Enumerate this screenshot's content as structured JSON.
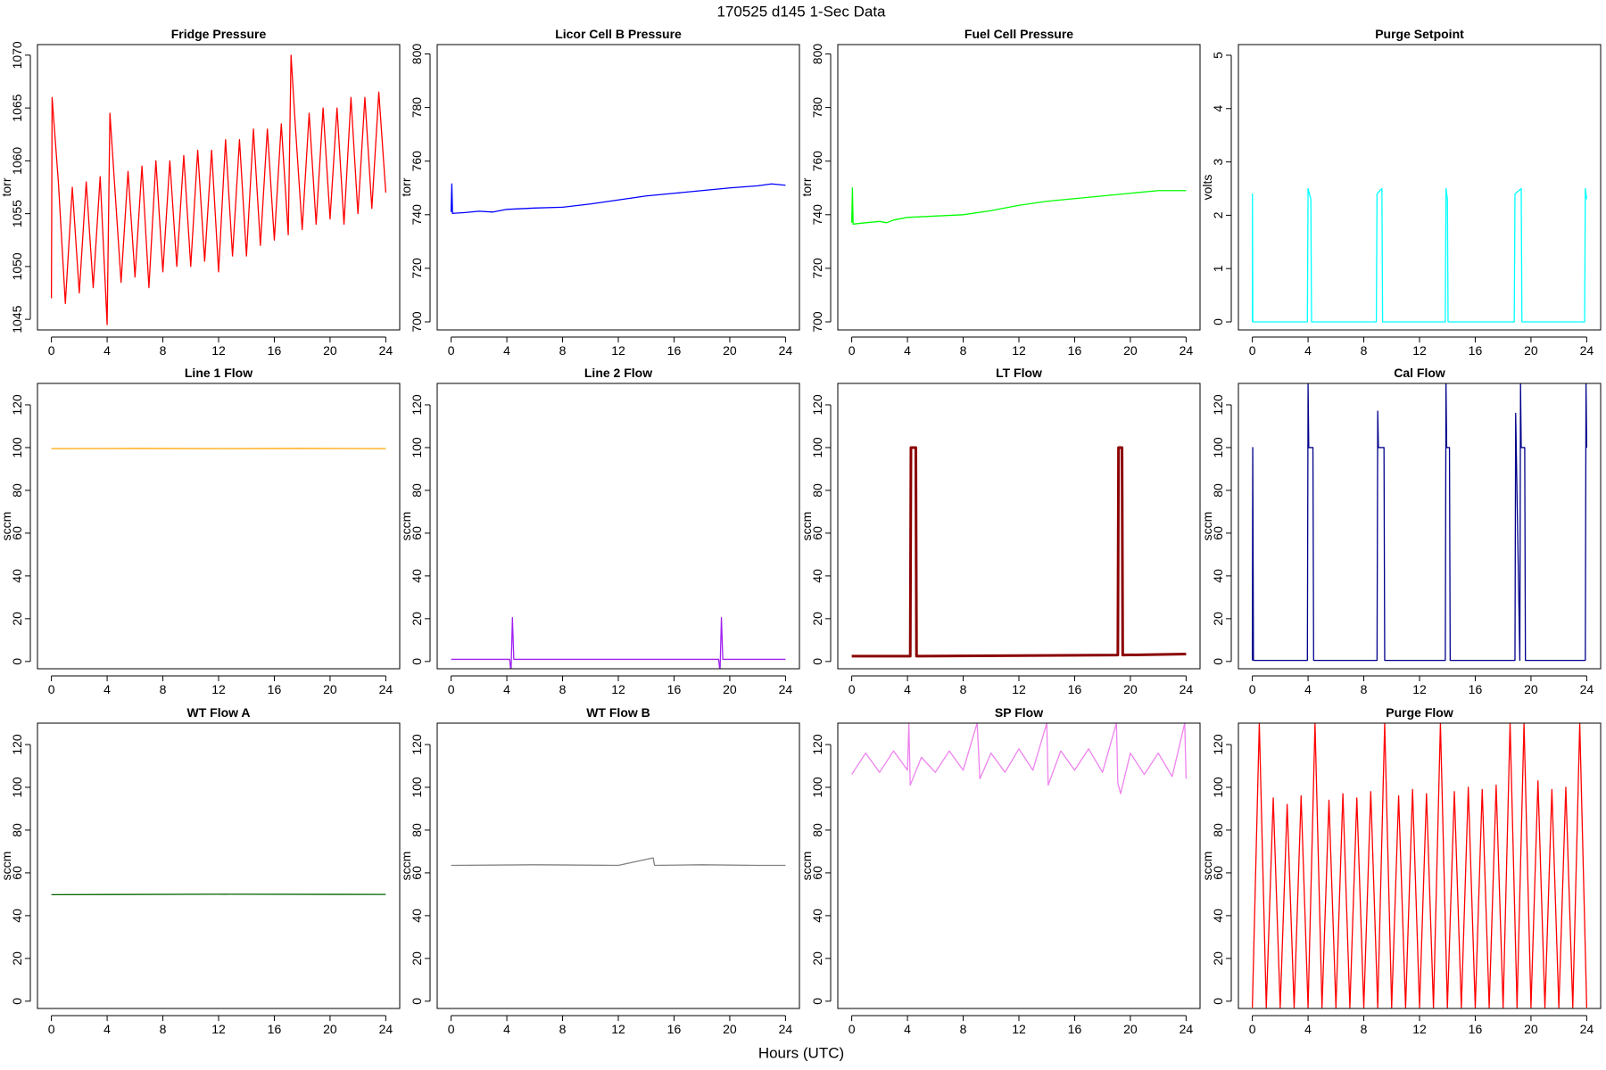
{
  "title": "170525   d145   1-Sec Data",
  "xlabel": "Hours (UTC)",
  "chart_data": [
    {
      "type": "line",
      "title": "Fridge Pressure",
      "ylabel": "torr",
      "x": [
        0,
        0.05,
        0.5,
        1,
        1.5,
        2,
        2.5,
        3,
        3.5,
        4,
        4.2,
        4.5,
        5,
        5.5,
        6,
        6.5,
        7,
        7.5,
        8,
        8.5,
        9,
        9.5,
        10,
        10.5,
        11,
        11.5,
        12,
        12.5,
        13,
        13.5,
        14,
        14.5,
        15,
        15.5,
        16,
        16.5,
        17,
        17.2,
        17.5,
        18,
        18.5,
        19,
        19.5,
        20,
        20.5,
        21,
        21.5,
        22,
        22.5,
        23,
        23.5,
        24
      ],
      "series": [
        {
          "color": "#ff0000",
          "values": [
            1047,
            1066,
            1058,
            1046.5,
            1057.5,
            1047.5,
            1058,
            1048,
            1058.5,
            1044.5,
            1064.5,
            1058.5,
            1048.5,
            1059,
            1049,
            1059.5,
            1048,
            1060,
            1049.5,
            1060,
            1050,
            1060.5,
            1050,
            1061,
            1050.5,
            1061,
            1049.5,
            1062,
            1051,
            1062,
            1051,
            1063,
            1052,
            1063,
            1052.5,
            1063.5,
            1053,
            1070,
            1063.5,
            1053.5,
            1064.5,
            1054,
            1065,
            1054.5,
            1065,
            1054,
            1066,
            1055,
            1066,
            1055.5,
            1066.5,
            1057
          ]
        }
      ],
      "xlim": [
        -1,
        25
      ],
      "ylim": [
        1044,
        1071
      ],
      "xticks": [
        0,
        4,
        8,
        12,
        16,
        20,
        24
      ],
      "yticks": [
        1045,
        1050,
        1055,
        1060,
        1065,
        1070
      ]
    },
    {
      "type": "line",
      "title": "Licor Cell B Pressure",
      "ylabel": "torr",
      "x": [
        0,
        0.05,
        0.1,
        1,
        2,
        3,
        4,
        6,
        8,
        10,
        12,
        14,
        16,
        18,
        20,
        22,
        23,
        24
      ],
      "series": [
        {
          "color": "#0000ff",
          "values": [
            741,
            751.5,
            740.5,
            740.8,
            741.3,
            741,
            742,
            742.5,
            742.8,
            744,
            745.5,
            747,
            748,
            749,
            750,
            750.8,
            751.5,
            751
          ]
        }
      ],
      "xlim": [
        -1,
        25
      ],
      "ylim": [
        697,
        803.5
      ],
      "xticks": [
        0,
        4,
        8,
        12,
        16,
        20,
        24
      ],
      "yticks": [
        700,
        720,
        740,
        760,
        780,
        800
      ]
    },
    {
      "type": "line",
      "title": "Fuel Cell Pressure",
      "ylabel": "torr",
      "x": [
        0,
        0.05,
        0.1,
        1,
        2,
        2.5,
        3,
        4,
        6,
        8,
        10,
        12,
        14,
        16,
        18,
        20,
        22,
        24
      ],
      "series": [
        {
          "color": "#00ff00",
          "values": [
            737,
            750,
            736.5,
            737,
            737.5,
            737,
            738,
            739,
            739.5,
            740,
            741.5,
            743.5,
            745,
            746,
            747,
            748,
            749,
            749
          ]
        }
      ],
      "xlim": [
        -1,
        25
      ],
      "ylim": [
        697,
        803.5
      ],
      "xticks": [
        0,
        4,
        8,
        12,
        16,
        20,
        24
      ],
      "yticks": [
        700,
        720,
        740,
        760,
        780,
        800
      ]
    },
    {
      "type": "line",
      "title": "Purge Setpoint",
      "ylabel": "volts",
      "x": [
        0,
        0.01,
        0.03,
        3.95,
        4,
        4.2,
        4.25,
        8.9,
        8.95,
        9.3,
        9.35,
        13.85,
        13.9,
        14,
        14.05,
        18.8,
        18.85,
        19.3,
        19.35,
        23.85,
        23.9,
        24
      ],
      "series": [
        {
          "color": "#00ffff",
          "values": [
            0,
            2.4,
            0,
            0,
            2.5,
            2.3,
            0,
            0,
            2.4,
            2.5,
            0,
            0,
            2.5,
            2.3,
            0,
            0,
            2.4,
            2.5,
            0,
            0,
            2.5,
            2.3
          ]
        }
      ],
      "xlim": [
        -1,
        25
      ],
      "ylim": [
        -0.15,
        5.2
      ],
      "xticks": [
        0,
        4,
        8,
        12,
        16,
        20,
        24
      ],
      "yticks": [
        0,
        1,
        2,
        3,
        4,
        5
      ]
    },
    {
      "type": "line",
      "title": "Line 1 Flow",
      "ylabel": "sccm",
      "x": [
        0,
        6,
        12,
        18,
        24
      ],
      "series": [
        {
          "color": "#ffa500",
          "values": [
            99.5,
            99.6,
            99.5,
            99.6,
            99.5
          ]
        }
      ],
      "xlim": [
        -1,
        25
      ],
      "ylim": [
        -3.4,
        130
      ],
      "xticks": [
        0,
        4,
        8,
        12,
        16,
        20,
        24
      ],
      "yticks": [
        0,
        20,
        40,
        60,
        80,
        100,
        120
      ]
    },
    {
      "type": "line",
      "title": "Line 2 Flow",
      "ylabel": "sccm",
      "x": [
        0,
        4.2,
        4.3,
        4.4,
        4.5,
        19.2,
        19.3,
        19.4,
        19.5,
        24
      ],
      "series": [
        {
          "color": "#a020f0",
          "values": [
            1,
            1,
            -5,
            20.5,
            1,
            1,
            -5,
            20.5,
            1,
            1
          ]
        }
      ],
      "xlim": [
        -1,
        25
      ],
      "ylim": [
        -3.4,
        130
      ],
      "xticks": [
        0,
        4,
        8,
        12,
        16,
        20,
        24
      ],
      "yticks": [
        0,
        20,
        40,
        60,
        80,
        100,
        120
      ]
    },
    {
      "type": "line",
      "title": "LT Flow",
      "ylabel": "sccm",
      "x": [
        0,
        4.2,
        4.25,
        4.6,
        4.65,
        19.1,
        19.15,
        19.4,
        19.45,
        24
      ],
      "series": [
        {
          "color": "#8b0000",
          "values": [
            2.5,
            2.5,
            100,
            100,
            2.5,
            3,
            100,
            100,
            3,
            3.5
          ]
        }
      ],
      "xlim": [
        -1,
        25
      ],
      "ylim": [
        -3.4,
        130
      ],
      "xticks": [
        0,
        4,
        8,
        12,
        16,
        20,
        24
      ],
      "yticks": [
        0,
        20,
        40,
        60,
        80,
        100,
        120
      ]
    },
    {
      "type": "line",
      "title": "Cal Flow",
      "ylabel": "sccm",
      "x": [
        0,
        0.03,
        0.08,
        3.95,
        4.0,
        4.05,
        4.35,
        4.4,
        8.95,
        9.0,
        9.05,
        9.45,
        9.5,
        13.85,
        13.9,
        13.95,
        14.15,
        14.2,
        18.85,
        18.9,
        19.2,
        19.25,
        19.3,
        19.55,
        19.6,
        23.9,
        23.95,
        24
      ],
      "series": [
        {
          "color": "#00008b",
          "values": [
            0.5,
            100,
            0.5,
            0.5,
            130,
            100,
            100,
            0.5,
            0.5,
            117,
            100,
            100,
            0.5,
            0.5,
            130,
            100,
            100,
            0.5,
            0.5,
            116,
            0.5,
            130,
            100,
            100,
            0.5,
            0.5,
            130,
            100
          ]
        }
      ],
      "xlim": [
        -1,
        25
      ],
      "ylim": [
        -3.4,
        130
      ],
      "xticks": [
        0,
        4,
        8,
        12,
        16,
        20,
        24
      ],
      "yticks": [
        0,
        20,
        40,
        60,
        80,
        100,
        120
      ]
    },
    {
      "type": "line",
      "title": "WT Flow A",
      "ylabel": "sccm",
      "x": [
        0,
        12,
        24
      ],
      "series": [
        {
          "color": "#006400",
          "values": [
            49.8,
            50,
            49.9
          ]
        }
      ],
      "xlim": [
        -1,
        25
      ],
      "ylim": [
        -3.4,
        130
      ],
      "xticks": [
        0,
        4,
        8,
        12,
        16,
        20,
        24
      ],
      "yticks": [
        0,
        20,
        40,
        60,
        80,
        100,
        120
      ]
    },
    {
      "type": "line",
      "title": "WT Flow B",
      "ylabel": "sccm",
      "x": [
        0,
        6,
        12,
        14.5,
        14.6,
        18,
        22,
        24
      ],
      "series": [
        {
          "color": "#808080",
          "values": [
            63.5,
            63.8,
            63.5,
            67,
            63.5,
            63.8,
            63.5,
            63.5
          ]
        }
      ],
      "xlim": [
        -1,
        25
      ],
      "ylim": [
        -3.4,
        130
      ],
      "xticks": [
        0,
        4,
        8,
        12,
        16,
        20,
        24
      ],
      "yticks": [
        0,
        20,
        40,
        60,
        80,
        100,
        120
      ]
    },
    {
      "type": "line",
      "title": "SP Flow",
      "ylabel": "sccm",
      "x": [
        0,
        1,
        2,
        3,
        4,
        4.1,
        4.2,
        5,
        6,
        7,
        8,
        9,
        9.2,
        10,
        11,
        12,
        13,
        14,
        14.1,
        15,
        16,
        17,
        18,
        19,
        19.1,
        19.3,
        20,
        21,
        22,
        23,
        23.9,
        24
      ],
      "series": [
        {
          "color": "#ee82ee",
          "values": [
            106,
            116,
            107,
            117,
            108,
            130,
            101,
            114,
            107,
            117,
            108,
            130,
            104,
            116,
            107,
            118,
            108,
            130,
            101,
            117,
            108,
            118,
            107,
            130,
            102,
            97,
            116,
            106,
            116,
            105,
            130,
            104
          ]
        }
      ],
      "xlim": [
        -1,
        25
      ],
      "ylim": [
        -3.4,
        130
      ],
      "xticks": [
        0,
        4,
        8,
        12,
        16,
        20,
        24
      ],
      "yticks": [
        0,
        20,
        40,
        60,
        80,
        100,
        120
      ]
    },
    {
      "type": "line",
      "title": "Purge Flow",
      "ylabel": "sccm",
      "x": [
        0,
        0.5,
        1,
        1.5,
        2,
        2.5,
        3,
        3.5,
        4,
        4.5,
        5,
        5.5,
        6,
        6.5,
        7,
        7.5,
        8,
        8.5,
        9,
        9.5,
        10,
        10.5,
        11,
        11.5,
        12,
        12.5,
        13,
        13.5,
        14,
        14.5,
        15,
        15.5,
        16,
        16.5,
        17,
        17.5,
        18,
        18.5,
        19,
        19.5,
        20,
        20.5,
        21,
        21.5,
        22,
        22.5,
        23,
        23.5,
        24
      ],
      "series": [
        {
          "color": "#ff0000",
          "values": [
            -3,
            130,
            -3,
            95,
            -3,
            92,
            -3,
            96,
            -3,
            130,
            -3,
            94,
            -3,
            97,
            -3,
            95,
            -3,
            98,
            -3,
            130,
            -3,
            96,
            -3,
            99,
            -3,
            97,
            -3,
            130,
            -3,
            98,
            -3,
            100,
            -3,
            99,
            -3,
            101,
            -3,
            130,
            -3,
            130,
            -3,
            103,
            -3,
            99,
            -3,
            100,
            -3,
            130,
            -3
          ]
        }
      ],
      "xlim": [
        -1,
        25
      ],
      "ylim": [
        -3.4,
        130
      ],
      "xticks": [
        0,
        4,
        8,
        12,
        16,
        20,
        24
      ],
      "yticks": [
        0,
        20,
        40,
        60,
        80,
        100,
        120
      ]
    }
  ]
}
